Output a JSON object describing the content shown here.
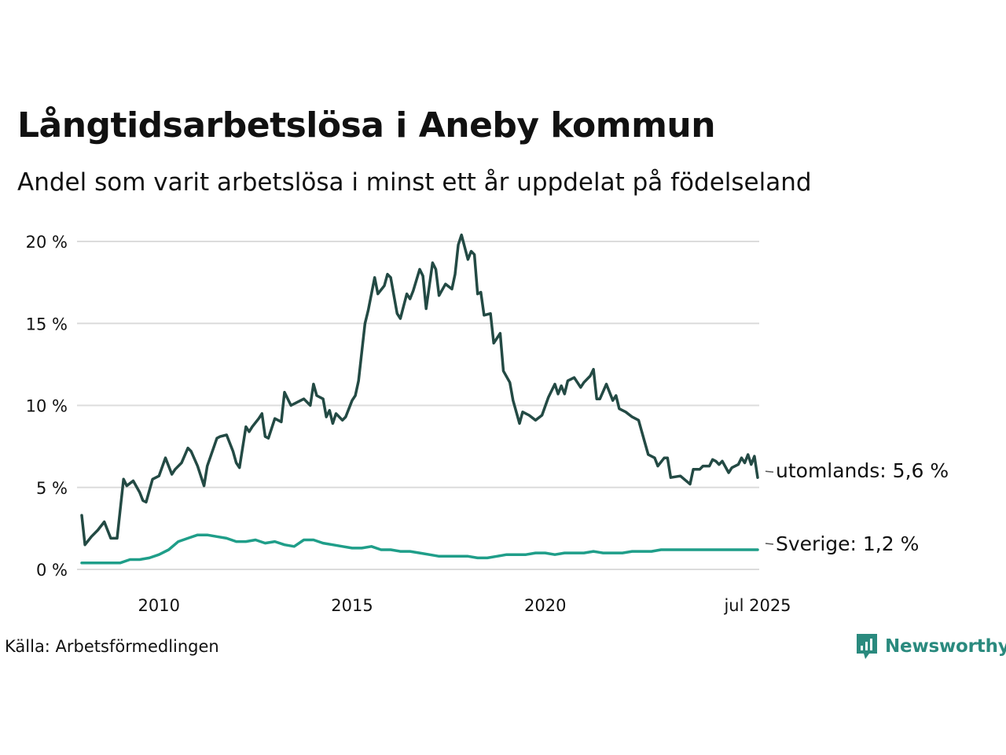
{
  "title": "Långtidsarbetslösa i Aneby kommun",
  "subtitle": "Andel som varit arbetslösa i minst ett år uppdelat på födelseland",
  "source": "Källa: Arbetsförmedlingen",
  "brand": {
    "name": "Newsworthy",
    "icon": "newsworthy-logo-icon",
    "color": "#2a8a7e"
  },
  "chart_data": {
    "type": "line",
    "title": "Långtidsarbetslösa i Aneby kommun",
    "subtitle": "Andel som varit arbetslösa i minst ett år uppdelat på födelseland",
    "x_ticks": [
      {
        "label": "2010",
        "date": "2010-01"
      },
      {
        "label": "2015",
        "date": "2015-01"
      },
      {
        "label": "2020",
        "date": "2020-01"
      },
      {
        "label": "jul 2025",
        "date": "2025-07"
      }
    ],
    "y_ticks": [
      {
        "label": "0 %",
        "value": 0
      },
      {
        "label": "5 %",
        "value": 5
      },
      {
        "label": "10 %",
        "value": 10
      },
      {
        "label": "15 %",
        "value": 15
      },
      {
        "label": "20 %",
        "value": 20
      }
    ],
    "xlim": [
      "2008-01",
      "2025-07"
    ],
    "ylim": [
      0,
      20
    ],
    "grid": true,
    "series": [
      {
        "name": "utomlands",
        "end_label": "utomlands: 5,6 %",
        "color": "#234a44",
        "points": [
          [
            "2008-01",
            3.3
          ],
          [
            "2008-02",
            1.5
          ],
          [
            "2008-04",
            2.0
          ],
          [
            "2008-06",
            2.4
          ],
          [
            "2008-08",
            2.9
          ],
          [
            "2008-09",
            2.4
          ],
          [
            "2008-10",
            1.9
          ],
          [
            "2008-12",
            1.9
          ],
          [
            "2009-02",
            5.5
          ],
          [
            "2009-03",
            5.1
          ],
          [
            "2009-05",
            5.4
          ],
          [
            "2009-07",
            4.7
          ],
          [
            "2009-08",
            4.2
          ],
          [
            "2009-09",
            4.1
          ],
          [
            "2009-11",
            5.5
          ],
          [
            "2010-01",
            5.7
          ],
          [
            "2010-03",
            6.8
          ],
          [
            "2010-05",
            5.8
          ],
          [
            "2010-06",
            6.1
          ],
          [
            "2010-08",
            6.5
          ],
          [
            "2010-10",
            7.4
          ],
          [
            "2010-11",
            7.2
          ],
          [
            "2011-01",
            6.3
          ],
          [
            "2011-03",
            5.1
          ],
          [
            "2011-04",
            6.3
          ],
          [
            "2011-07",
            8.0
          ],
          [
            "2011-08",
            8.1
          ],
          [
            "2011-10",
            8.2
          ],
          [
            "2011-12",
            7.2
          ],
          [
            "2012-01",
            6.5
          ],
          [
            "2012-02",
            6.2
          ],
          [
            "2012-04",
            8.7
          ],
          [
            "2012-05",
            8.4
          ],
          [
            "2012-06",
            8.7
          ],
          [
            "2012-08",
            9.2
          ],
          [
            "2012-09",
            9.5
          ],
          [
            "2012-10",
            8.1
          ],
          [
            "2012-11",
            8.0
          ],
          [
            "2013-01",
            9.2
          ],
          [
            "2013-03",
            9.0
          ],
          [
            "2013-04",
            10.8
          ],
          [
            "2013-06",
            10.0
          ],
          [
            "2013-08",
            10.2
          ],
          [
            "2013-10",
            10.4
          ],
          [
            "2013-12",
            10.0
          ],
          [
            "2014-01",
            11.3
          ],
          [
            "2014-02",
            10.6
          ],
          [
            "2014-04",
            10.4
          ],
          [
            "2014-05",
            9.3
          ],
          [
            "2014-06",
            9.7
          ],
          [
            "2014-07",
            8.9
          ],
          [
            "2014-08",
            9.5
          ],
          [
            "2014-10",
            9.1
          ],
          [
            "2014-11",
            9.3
          ],
          [
            "2015-01",
            10.3
          ],
          [
            "2015-02",
            10.6
          ],
          [
            "2015-03",
            11.5
          ],
          [
            "2015-05",
            15.0
          ],
          [
            "2015-06",
            15.8
          ],
          [
            "2015-08",
            17.8
          ],
          [
            "2015-09",
            16.8
          ],
          [
            "2015-11",
            17.3
          ],
          [
            "2015-12",
            18.0
          ],
          [
            "2016-01",
            17.8
          ],
          [
            "2016-03",
            15.6
          ],
          [
            "2016-04",
            15.3
          ],
          [
            "2016-06",
            16.8
          ],
          [
            "2016-07",
            16.5
          ],
          [
            "2016-08",
            17.0
          ],
          [
            "2016-10",
            18.3
          ],
          [
            "2016-11",
            17.9
          ],
          [
            "2016-12",
            15.9
          ],
          [
            "2017-02",
            18.7
          ],
          [
            "2017-03",
            18.3
          ],
          [
            "2017-04",
            16.7
          ],
          [
            "2017-06",
            17.4
          ],
          [
            "2017-08",
            17.1
          ],
          [
            "2017-09",
            18.0
          ],
          [
            "2017-10",
            19.8
          ],
          [
            "2017-11",
            20.4
          ],
          [
            "2018-01",
            18.9
          ],
          [
            "2018-02",
            19.4
          ],
          [
            "2018-03",
            19.2
          ],
          [
            "2018-04",
            16.8
          ],
          [
            "2018-05",
            16.9
          ],
          [
            "2018-06",
            15.5
          ],
          [
            "2018-08",
            15.6
          ],
          [
            "2018-09",
            13.8
          ],
          [
            "2018-11",
            14.4
          ],
          [
            "2018-12",
            12.1
          ],
          [
            "2019-02",
            11.4
          ],
          [
            "2019-03",
            10.3
          ],
          [
            "2019-05",
            8.9
          ],
          [
            "2019-06",
            9.6
          ],
          [
            "2019-08",
            9.4
          ],
          [
            "2019-10",
            9.1
          ],
          [
            "2019-12",
            9.4
          ],
          [
            "2020-02",
            10.5
          ],
          [
            "2020-04",
            11.3
          ],
          [
            "2020-05",
            10.7
          ],
          [
            "2020-06",
            11.2
          ],
          [
            "2020-07",
            10.7
          ],
          [
            "2020-08",
            11.5
          ],
          [
            "2020-10",
            11.7
          ],
          [
            "2020-11",
            11.4
          ],
          [
            "2020-12",
            11.1
          ],
          [
            "2021-01",
            11.4
          ],
          [
            "2021-03",
            11.8
          ],
          [
            "2021-04",
            12.2
          ],
          [
            "2021-05",
            10.4
          ],
          [
            "2021-06",
            10.4
          ],
          [
            "2021-08",
            11.3
          ],
          [
            "2021-10",
            10.3
          ],
          [
            "2021-11",
            10.6
          ],
          [
            "2021-12",
            9.8
          ],
          [
            "2022-02",
            9.6
          ],
          [
            "2022-04",
            9.3
          ],
          [
            "2022-06",
            9.1
          ],
          [
            "2022-08",
            7.7
          ],
          [
            "2022-09",
            7.0
          ],
          [
            "2022-11",
            6.8
          ],
          [
            "2022-12",
            6.3
          ],
          [
            "2023-02",
            6.8
          ],
          [
            "2023-03",
            6.8
          ],
          [
            "2023-04",
            5.6
          ],
          [
            "2023-07",
            5.7
          ],
          [
            "2023-10",
            5.2
          ],
          [
            "2023-11",
            6.1
          ],
          [
            "2024-01",
            6.1
          ],
          [
            "2024-02",
            6.3
          ],
          [
            "2024-04",
            6.3
          ],
          [
            "2024-05",
            6.7
          ],
          [
            "2024-06",
            6.6
          ],
          [
            "2024-07",
            6.4
          ],
          [
            "2024-08",
            6.6
          ],
          [
            "2024-10",
            5.9
          ],
          [
            "2024-11",
            6.2
          ],
          [
            "2025-01",
            6.4
          ],
          [
            "2025-02",
            6.8
          ],
          [
            "2025-03",
            6.5
          ],
          [
            "2025-04",
            7.0
          ],
          [
            "2025-05",
            6.4
          ],
          [
            "2025-06",
            6.9
          ],
          [
            "2025-07",
            5.6
          ]
        ]
      },
      {
        "name": "Sverige",
        "end_label": "Sverige: 1,2 %",
        "color": "#1f9e89",
        "points": [
          [
            "2008-01",
            0.4
          ],
          [
            "2008-06",
            0.4
          ],
          [
            "2009-01",
            0.4
          ],
          [
            "2009-04",
            0.6
          ],
          [
            "2009-07",
            0.6
          ],
          [
            "2009-10",
            0.7
          ],
          [
            "2010-01",
            0.9
          ],
          [
            "2010-04",
            1.2
          ],
          [
            "2010-07",
            1.7
          ],
          [
            "2010-10",
            1.9
          ],
          [
            "2011-01",
            2.1
          ],
          [
            "2011-04",
            2.1
          ],
          [
            "2011-07",
            2.0
          ],
          [
            "2011-10",
            1.9
          ],
          [
            "2012-01",
            1.7
          ],
          [
            "2012-04",
            1.7
          ],
          [
            "2012-07",
            1.8
          ],
          [
            "2012-10",
            1.6
          ],
          [
            "2013-01",
            1.7
          ],
          [
            "2013-04",
            1.5
          ],
          [
            "2013-07",
            1.4
          ],
          [
            "2013-10",
            1.8
          ],
          [
            "2014-01",
            1.8
          ],
          [
            "2014-04",
            1.6
          ],
          [
            "2014-07",
            1.5
          ],
          [
            "2014-10",
            1.4
          ],
          [
            "2015-01",
            1.3
          ],
          [
            "2015-04",
            1.3
          ],
          [
            "2015-07",
            1.4
          ],
          [
            "2015-10",
            1.2
          ],
          [
            "2016-01",
            1.2
          ],
          [
            "2016-04",
            1.1
          ],
          [
            "2016-07",
            1.1
          ],
          [
            "2016-10",
            1.0
          ],
          [
            "2017-01",
            0.9
          ],
          [
            "2017-04",
            0.8
          ],
          [
            "2017-07",
            0.8
          ],
          [
            "2017-10",
            0.8
          ],
          [
            "2018-01",
            0.8
          ],
          [
            "2018-04",
            0.7
          ],
          [
            "2018-07",
            0.7
          ],
          [
            "2018-10",
            0.8
          ],
          [
            "2019-01",
            0.9
          ],
          [
            "2019-04",
            0.9
          ],
          [
            "2019-07",
            0.9
          ],
          [
            "2019-10",
            1.0
          ],
          [
            "2020-01",
            1.0
          ],
          [
            "2020-04",
            0.9
          ],
          [
            "2020-07",
            1.0
          ],
          [
            "2020-10",
            1.0
          ],
          [
            "2021-01",
            1.0
          ],
          [
            "2021-04",
            1.1
          ],
          [
            "2021-07",
            1.0
          ],
          [
            "2021-10",
            1.0
          ],
          [
            "2022-01",
            1.0
          ],
          [
            "2022-04",
            1.1
          ],
          [
            "2022-07",
            1.1
          ],
          [
            "2022-10",
            1.1
          ],
          [
            "2023-01",
            1.2
          ],
          [
            "2023-04",
            1.2
          ],
          [
            "2023-07",
            1.2
          ],
          [
            "2023-10",
            1.2
          ],
          [
            "2024-01",
            1.2
          ],
          [
            "2024-04",
            1.2
          ],
          [
            "2024-07",
            1.2
          ],
          [
            "2024-10",
            1.2
          ],
          [
            "2025-01",
            1.2
          ],
          [
            "2025-04",
            1.2
          ],
          [
            "2025-07",
            1.2
          ]
        ]
      }
    ]
  }
}
